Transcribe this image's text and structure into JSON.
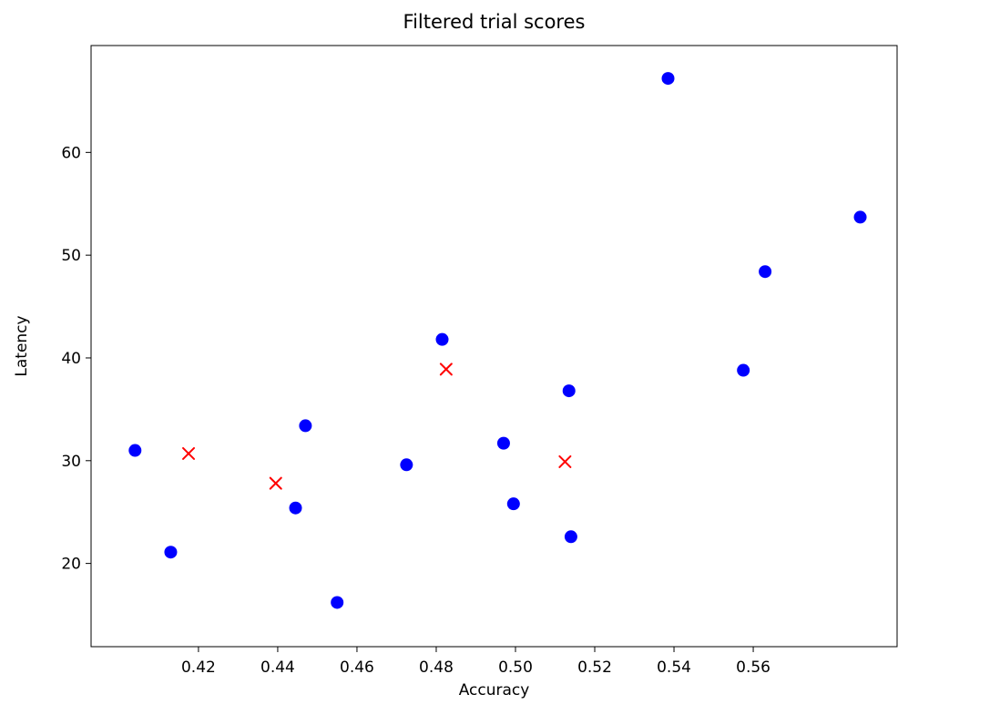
{
  "chart_data": {
    "type": "scatter",
    "title": "Filtered trial scores",
    "xlabel": "Accuracy",
    "ylabel": "Latency",
    "xlim": [
      0.3929,
      0.5963
    ],
    "ylim": [
      11.9,
      70.4
    ],
    "xticks": [
      "0.42",
      "0.44",
      "0.46",
      "0.48",
      "0.50",
      "0.52",
      "0.54",
      "0.56"
    ],
    "yticks": [
      "20",
      "30",
      "40",
      "50",
      "60"
    ],
    "grid": false,
    "legend": "none",
    "series": [
      {
        "name": "blue-circle-points",
        "marker": "circle",
        "color": "#0000ff",
        "points": [
          [
            0.404,
            31.0
          ],
          [
            0.413,
            21.1
          ],
          [
            0.4445,
            25.4
          ],
          [
            0.447,
            33.4
          ],
          [
            0.455,
            16.2
          ],
          [
            0.4725,
            29.6
          ],
          [
            0.4815,
            41.8
          ],
          [
            0.497,
            31.7
          ],
          [
            0.4995,
            25.8
          ],
          [
            0.5135,
            36.8
          ],
          [
            0.514,
            22.6
          ],
          [
            0.5385,
            67.2
          ],
          [
            0.5575,
            38.8
          ],
          [
            0.563,
            48.4
          ],
          [
            0.587,
            53.7
          ]
        ]
      },
      {
        "name": "red-x-points",
        "marker": "x",
        "color": "#ff0000",
        "points": [
          [
            0.4175,
            30.7
          ],
          [
            0.4395,
            27.8
          ],
          [
            0.4825,
            38.9
          ],
          [
            0.5125,
            29.9
          ]
        ]
      }
    ]
  }
}
